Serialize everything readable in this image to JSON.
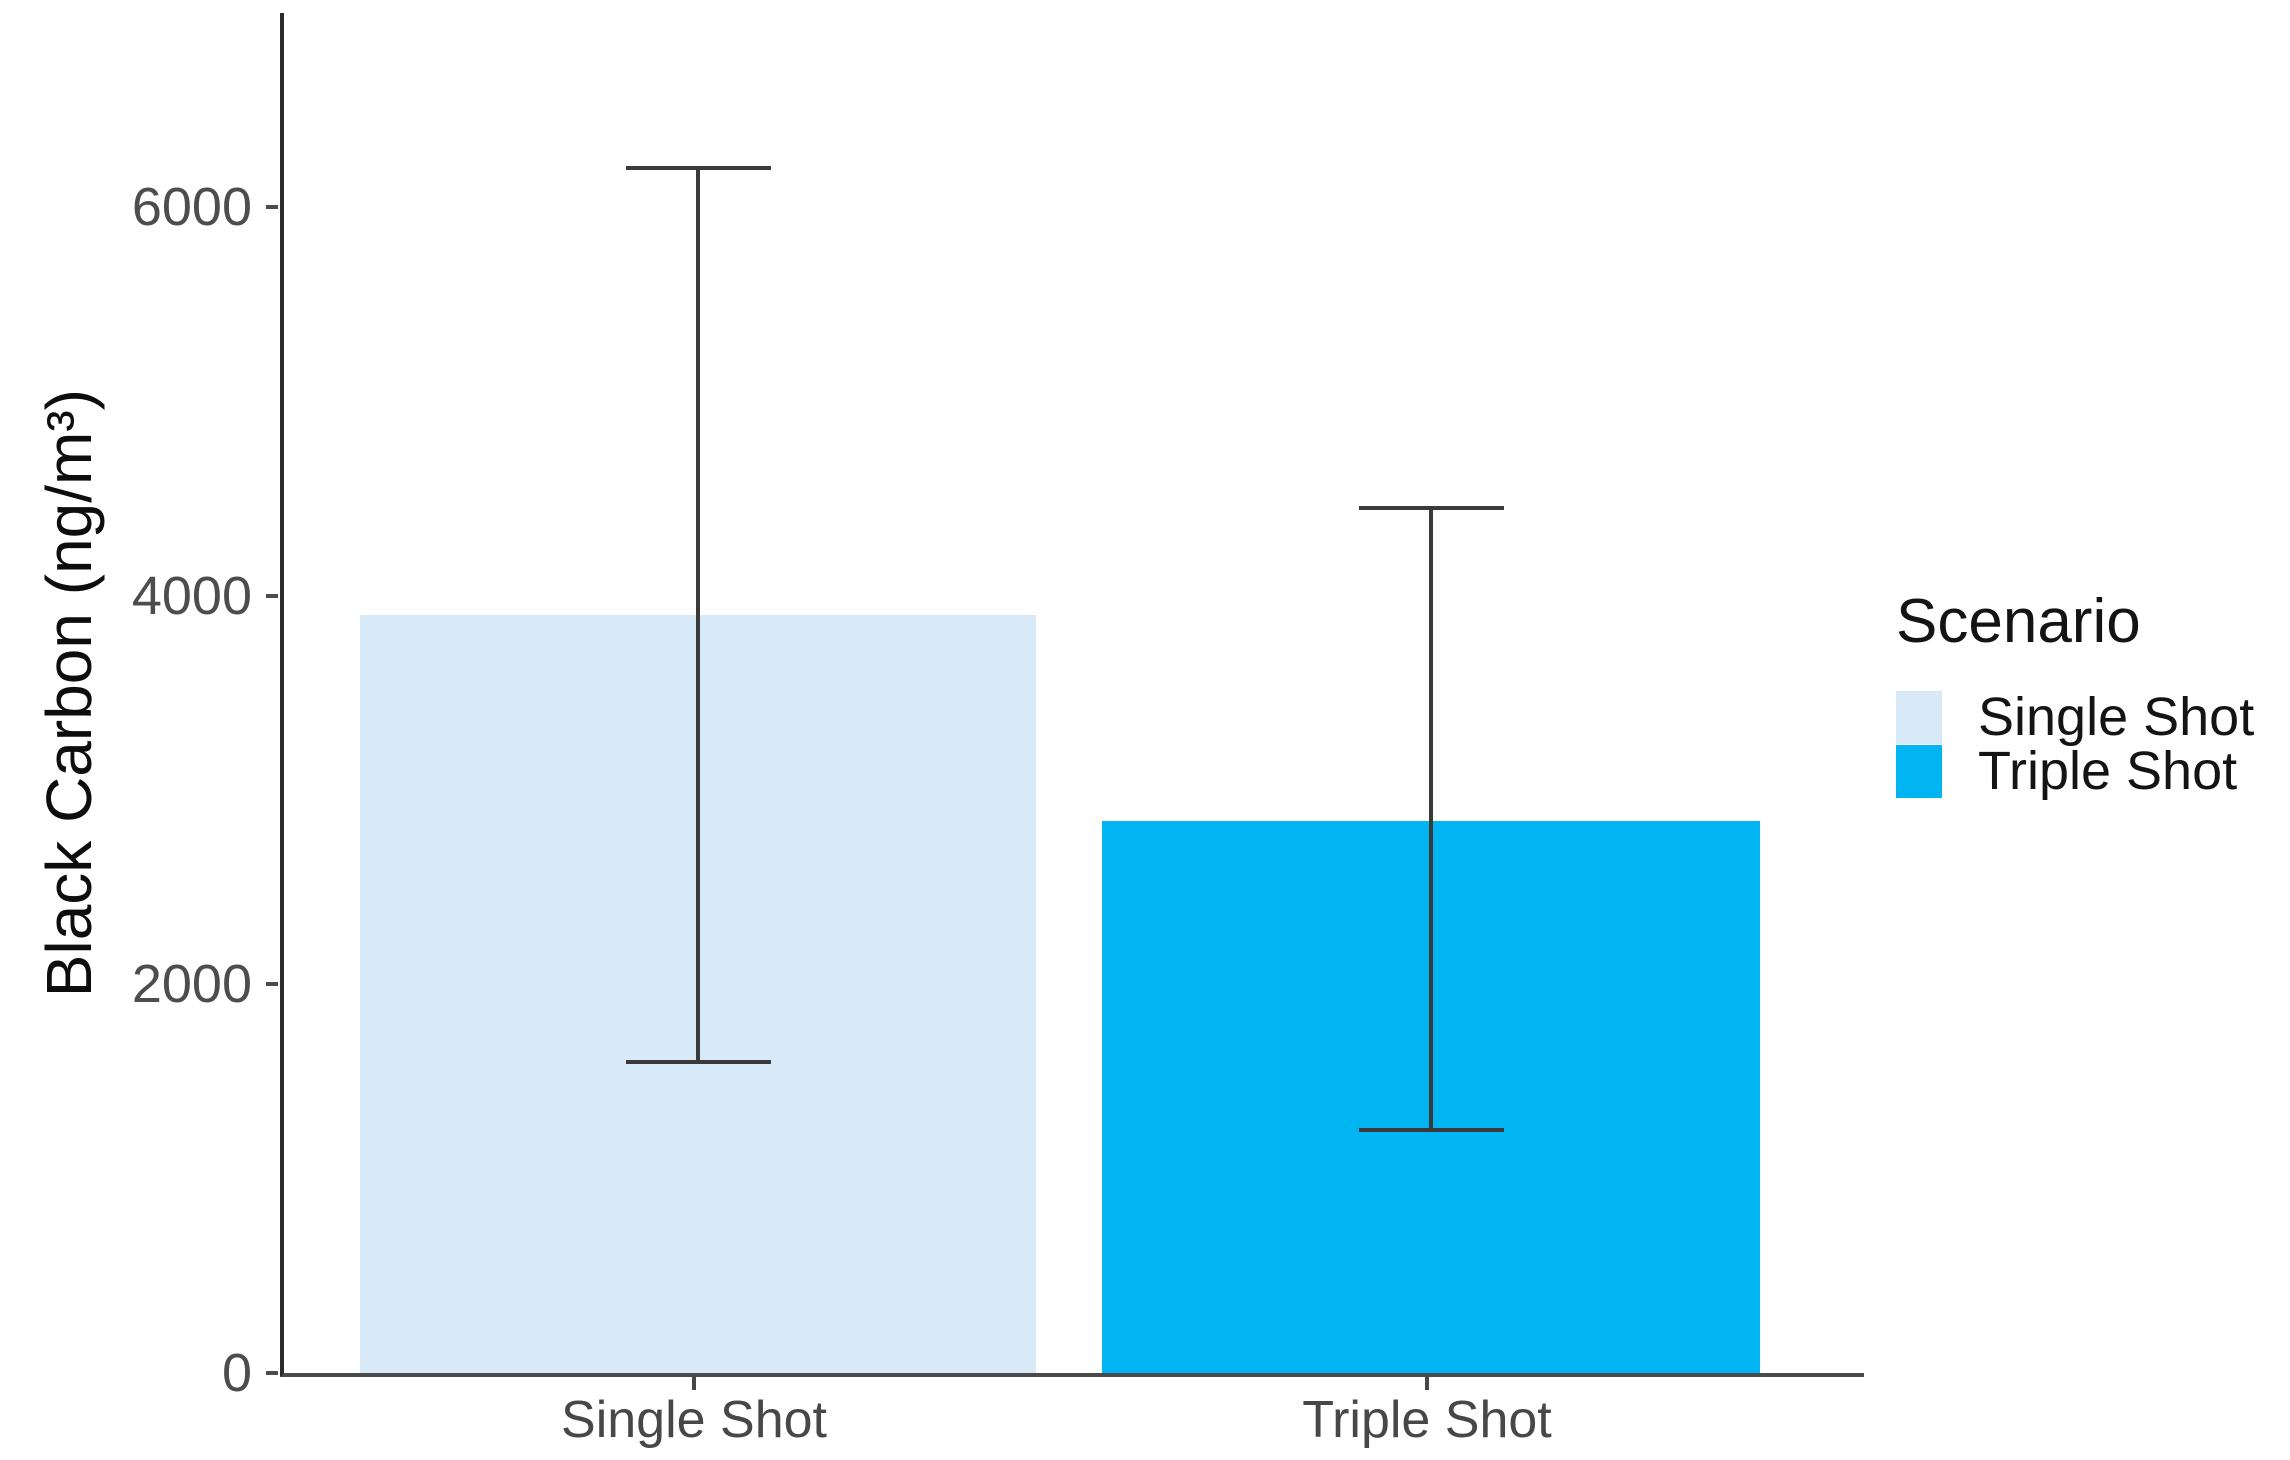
{
  "chart_data": {
    "type": "bar",
    "title": "",
    "categories": [
      "Single Shot",
      "Triple Shot"
    ],
    "series": [
      {
        "name": "Single Shot",
        "value": 3900,
        "error_low": 1600,
        "error_high": 6200,
        "color": "#D8EAF8"
      },
      {
        "name": "Triple Shot",
        "value": 2840,
        "error_low": 1250,
        "error_high": 4450,
        "color": "#00B5F2"
      }
    ],
    "xlabel": "",
    "ylabel": "Black Carbon (ng/m³)",
    "yticks": [
      0,
      2000,
      4000,
      6000
    ],
    "ylim": [
      0,
      7000
    ],
    "grid": false,
    "error_bar_color": "#3a3a3a",
    "axis_color": "#2a2a2a",
    "legend_position": "right",
    "legend": {
      "title": "Scenario",
      "entries": [
        {
          "label": "Single Shot",
          "swatch_color": "#D8EAF8"
        },
        {
          "label": "Triple Shot",
          "swatch_color": "#00B5F2"
        }
      ]
    }
  }
}
